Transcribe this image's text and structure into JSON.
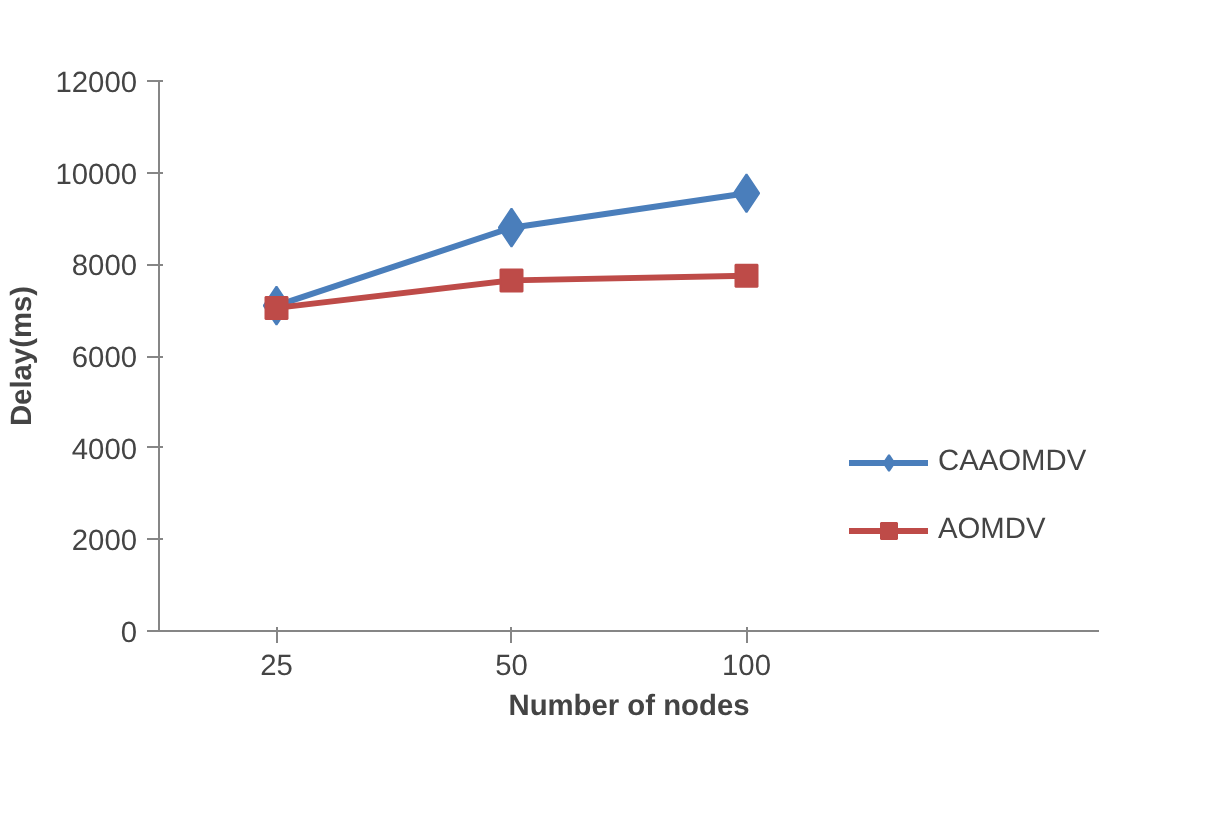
{
  "chart_data": {
    "type": "line",
    "xlabel": "Number of nodes",
    "ylabel": "Delay(ms)",
    "categories": [
      "25",
      "50",
      "100"
    ],
    "series": [
      {
        "name": "CAAOMDV",
        "color": "#4a7ebb",
        "marker": "diamond",
        "values": [
          7100,
          8800,
          9550
        ]
      },
      {
        "name": "AOMDV",
        "color": "#be4b48",
        "marker": "square",
        "values": [
          7050,
          7650,
          7750
        ]
      }
    ],
    "ylim": [
      0,
      12000
    ],
    "yticks": [
      0,
      2000,
      4000,
      6000,
      8000,
      10000,
      12000
    ],
    "grid": false,
    "legend": "right",
    "line_style": "solid"
  }
}
